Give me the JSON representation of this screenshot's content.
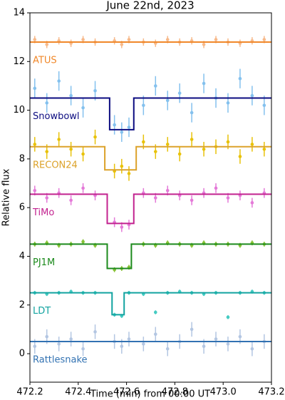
{
  "chart_data": {
    "type": "scatter",
    "title": "June 22nd, 2023",
    "x_label": "Time (min) from 00:00 UT",
    "y_label": "Relative flux",
    "xlim": [
      472.2,
      473.2
    ],
    "xticks": [
      472.2,
      472.4,
      472.6,
      472.8,
      {
        "value": 473,
        "label": "473.0"
      },
      473.2
    ],
    "ylim": [
      -1.17,
      14
    ],
    "yticks": [
      0,
      2,
      4,
      6,
      8,
      10,
      12,
      14
    ],
    "series": [
      {
        "name": "ATUS",
        "color": "#f7b98a",
        "model_color": "#f0882a",
        "yerr": 0.15,
        "x": [
          472.22,
          472.27,
          472.32,
          472.37,
          472.42,
          472.47,
          472.55,
          472.58,
          472.61,
          472.67,
          472.72,
          472.77,
          472.82,
          472.87,
          472.92,
          472.97,
          473.02,
          473.07,
          473.12,
          473.17
        ],
        "values": [
          12.9,
          12.7,
          12.85,
          12.75,
          12.9,
          12.8,
          12.85,
          12.7,
          12.9,
          12.8,
          12.75,
          12.9,
          12.8,
          12.85,
          12.7,
          12.9,
          12.8,
          12.75,
          12.85,
          12.9
        ],
        "model_x": [
          472.2,
          473.2
        ],
        "model_values": [
          12.8,
          12.8
        ]
      },
      {
        "name": "Snowbowl",
        "color": "#84c1ee",
        "model_color": "#0b0b80",
        "yerr": 0.4,
        "x": [
          472.22,
          472.27,
          472.32,
          472.37,
          472.42,
          472.47,
          472.55,
          472.58,
          472.61,
          472.67,
          472.72,
          472.77,
          472.82,
          472.87,
          472.92,
          472.97,
          473.02,
          473.07,
          473.12,
          473.17
        ],
        "values": [
          10.9,
          10.3,
          11.2,
          10.6,
          10.1,
          10.8,
          9.4,
          9.1,
          9.3,
          10.2,
          11.0,
          10.4,
          10.7,
          9.9,
          11.1,
          10.5,
          10.3,
          11.3,
          10.6,
          10.2
        ],
        "model_x": [
          472.2,
          472.53,
          472.53,
          472.63,
          472.63,
          473.2
        ],
        "model_values": [
          10.5,
          10.5,
          9.2,
          9.2,
          10.5,
          10.5
        ]
      },
      {
        "name": "RECON24",
        "color": "#e8c20a",
        "model_color": "#dca22a",
        "yerr": 0.3,
        "x": [
          472.22,
          472.27,
          472.32,
          472.37,
          472.42,
          472.47,
          472.55,
          472.58,
          472.61,
          472.67,
          472.72,
          472.77,
          472.82,
          472.87,
          472.92,
          472.97,
          473.02,
          473.07,
          473.12,
          473.17
        ],
        "values": [
          8.6,
          8.3,
          8.8,
          8.4,
          8.2,
          8.9,
          7.5,
          7.7,
          7.4,
          8.7,
          8.3,
          8.6,
          8.2,
          8.8,
          8.4,
          8.5,
          8.7,
          8.1,
          8.6,
          8.4
        ],
        "model_x": [
          472.2,
          472.51,
          472.51,
          472.64,
          472.64,
          473.2
        ],
        "model_values": [
          8.5,
          8.5,
          7.55,
          7.55,
          8.5,
          8.5
        ]
      },
      {
        "name": "TiMo",
        "color": "#e47ad8",
        "model_color": "#c2228f",
        "yerr": 0.2,
        "x": [
          472.22,
          472.27,
          472.32,
          472.37,
          472.42,
          472.47,
          472.55,
          472.58,
          472.61,
          472.67,
          472.72,
          472.77,
          472.82,
          472.87,
          472.92,
          472.97,
          473.02,
          473.07,
          473.12,
          473.17
        ],
        "values": [
          6.7,
          6.4,
          6.6,
          6.3,
          6.8,
          6.5,
          5.4,
          5.2,
          5.3,
          6.6,
          6.4,
          6.7,
          6.5,
          6.3,
          6.6,
          6.8,
          6.4,
          6.5,
          6.2,
          6.6
        ],
        "model_x": [
          472.2,
          472.52,
          472.52,
          472.63,
          472.63,
          473.2
        ],
        "model_values": [
          6.55,
          6.55,
          5.35,
          5.35,
          6.55,
          6.55
        ]
      },
      {
        "name": "PJ1M",
        "color": "#86c236",
        "model_color": "#1c8a1c",
        "yerr": 0.1,
        "x": [
          472.22,
          472.27,
          472.32,
          472.37,
          472.42,
          472.47,
          472.55,
          472.58,
          472.61,
          472.67,
          472.72,
          472.77,
          472.82,
          472.87,
          472.92,
          472.97,
          473.02,
          473.07,
          473.12,
          473.17
        ],
        "values": [
          4.5,
          4.55,
          4.45,
          4.5,
          4.6,
          4.45,
          3.45,
          3.5,
          3.55,
          4.5,
          4.45,
          4.55,
          4.5,
          4.45,
          4.55,
          4.5,
          4.5,
          4.45,
          4.55,
          4.5
        ],
        "model_x": [
          472.2,
          472.52,
          472.52,
          472.62,
          472.62,
          473.2
        ],
        "model_values": [
          4.5,
          4.5,
          3.5,
          3.5,
          4.5,
          4.5
        ]
      },
      {
        "name": "LDT",
        "color": "#45cbc2",
        "model_color": "#12a3a0",
        "yerr": 0.08,
        "x": [
          472.22,
          472.27,
          472.32,
          472.37,
          472.42,
          472.47,
          472.55,
          472.58,
          472.61,
          472.67,
          472.72,
          472.77,
          472.82,
          472.87,
          472.92,
          472.97,
          473.02,
          473.07,
          473.12,
          473.17
        ],
        "values": [
          2.5,
          2.45,
          2.5,
          2.55,
          2.5,
          2.5,
          1.6,
          1.55,
          2.5,
          2.45,
          1.7,
          2.5,
          2.55,
          2.5,
          2.45,
          2.5,
          1.5,
          2.5,
          2.55,
          2.5
        ],
        "model_x": [
          472.2,
          472.54,
          472.54,
          472.59,
          472.59,
          473.2
        ],
        "model_values": [
          2.5,
          2.5,
          1.6,
          1.6,
          2.5,
          2.5
        ]
      },
      {
        "name": "Rattlesnake",
        "color": "#b3c6e2",
        "model_color": "#3272b2",
        "yerr": 0.3,
        "x": [
          472.22,
          472.27,
          472.32,
          472.37,
          472.42,
          472.47,
          472.55,
          472.58,
          472.61,
          472.67,
          472.72,
          472.77,
          472.82,
          472.87,
          472.92,
          472.97,
          473.02,
          473.07,
          473.12,
          473.17
        ],
        "values": [
          0.3,
          0.7,
          0.4,
          0.6,
          0.2,
          0.9,
          0.5,
          0.3,
          0.6,
          0.4,
          0.8,
          0.2,
          0.5,
          1.0,
          0.3,
          0.6,
          0.4,
          0.7,
          0.2,
          0.5
        ],
        "model_x": [
          472.2,
          473.2
        ],
        "model_values": [
          0.5,
          0.5
        ]
      }
    ]
  }
}
